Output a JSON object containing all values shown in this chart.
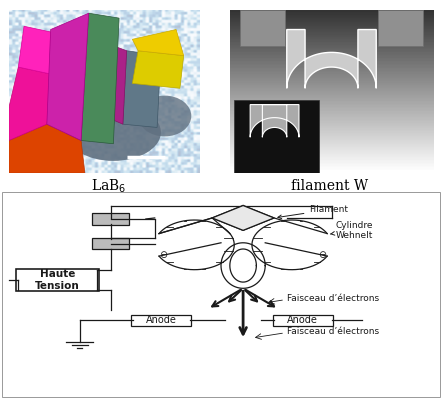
{
  "lab6_label": "LaB$_6$",
  "filament_label": "filament W",
  "diagram_labels": {
    "filament": "Filament",
    "cylindre": "Cylindre\nWehnelt",
    "haute_tension": "Haute\nTension",
    "faisceau1": "Faisceau d’électrons",
    "faisceau2": "Faisceau d’électrons",
    "anode1": "Anode",
    "anode2": "Anode"
  },
  "bg_color": "#ffffff",
  "diagram_color": "#1a1a1a",
  "diagram_bg": "#f0f0f0"
}
